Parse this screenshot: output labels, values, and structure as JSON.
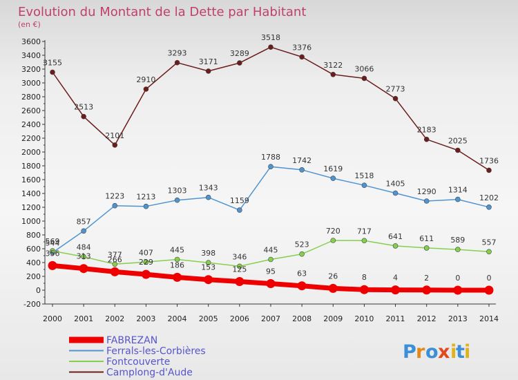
{
  "chart_data": {
    "type": "line",
    "title": "Evolution du Montant de la Dette par Habitant",
    "subtitle": "(en €)",
    "xlabel": "",
    "ylabel": "",
    "ylim": [
      -200,
      3600
    ],
    "y_ticks": [
      -200,
      0,
      200,
      400,
      600,
      800,
      1000,
      1200,
      1400,
      1600,
      1800,
      2000,
      2200,
      2400,
      2600,
      2800,
      3000,
      3200,
      3400,
      3600
    ],
    "categories": [
      "2000",
      "2001",
      "2002",
      "2003",
      "2004",
      "2005",
      "2006",
      "2007",
      "2008",
      "2009",
      "2010",
      "2011",
      "2012",
      "2013",
      "2014"
    ],
    "grid": false,
    "legend_position": "bottom-left",
    "series": [
      {
        "name": "Camplong-d'Aude",
        "color": "#6b1c1c",
        "values": [
          3155,
          2513,
          2101,
          2910,
          3293,
          3171,
          3289,
          3518,
          3376,
          3122,
          3066,
          2773,
          2183,
          2025,
          1736
        ]
      },
      {
        "name": "Ferrals-les-Corbières",
        "color": "#4f94d0",
        "values": [
          544,
          857,
          1223,
          1213,
          1303,
          1343,
          1159,
          1788,
          1742,
          1619,
          1518,
          1405,
          1290,
          1314,
          1202
        ]
      },
      {
        "name": "Fontcouverte",
        "color": "#86cf4e",
        "values": [
          569,
          484,
          377,
          407,
          445,
          398,
          346,
          445,
          523,
          720,
          717,
          641,
          611,
          589,
          557
        ]
      },
      {
        "name": "FABREZAN",
        "color": "#ee0000",
        "values": [
          356,
          313,
          266,
          229,
          186,
          153,
          125,
          95,
          63,
          26,
          8,
          4,
          2,
          0,
          0
        ]
      }
    ],
    "legend": [
      "FABREZAN",
      "Ferrals-les-Corbières",
      "Fontcouverte",
      "Camplong-d'Aude"
    ]
  },
  "watermark": "Proxiti",
  "colors": {
    "title": "#c0406a",
    "legend_text": "#5555cc",
    "axis": "#333333"
  }
}
